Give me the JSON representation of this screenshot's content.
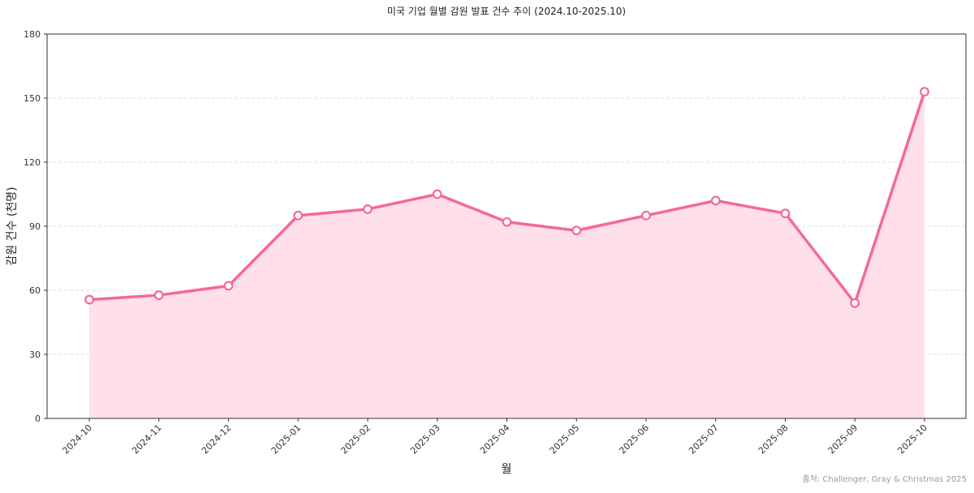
{
  "chart_data": {
    "type": "area",
    "title": "미국 기업 월별 감원 발표 건수 추이 (2024.10-2025.10)",
    "xlabel": "월",
    "ylabel": "감원 건수 (천명)",
    "categories": [
      "2024-10",
      "2024-11",
      "2024-12",
      "2025-01",
      "2025-02",
      "2025-03",
      "2025-04",
      "2025-05",
      "2025-06",
      "2025-07",
      "2025-08",
      "2025-09",
      "2025-10"
    ],
    "series": [
      {
        "values": [
          55.6,
          57.7,
          62.1,
          95.0,
          98.0,
          105.0,
          92.0,
          88.0,
          95.0,
          102.0,
          96.0,
          54.0,
          153.0
        ]
      }
    ],
    "ylim": [
      0,
      180
    ],
    "yticks": [
      0,
      30,
      60,
      90,
      120,
      150,
      180
    ],
    "grid": "horizontal-dashed",
    "source": "출처: Challenger, Gray & Christmas 2025",
    "colors": {
      "line": "#f5689c",
      "fill": "#ffdfeb",
      "marker_fill": "#ffffff",
      "grid": "#d6d6d6",
      "axis": "#333333",
      "source": "#999999"
    }
  }
}
